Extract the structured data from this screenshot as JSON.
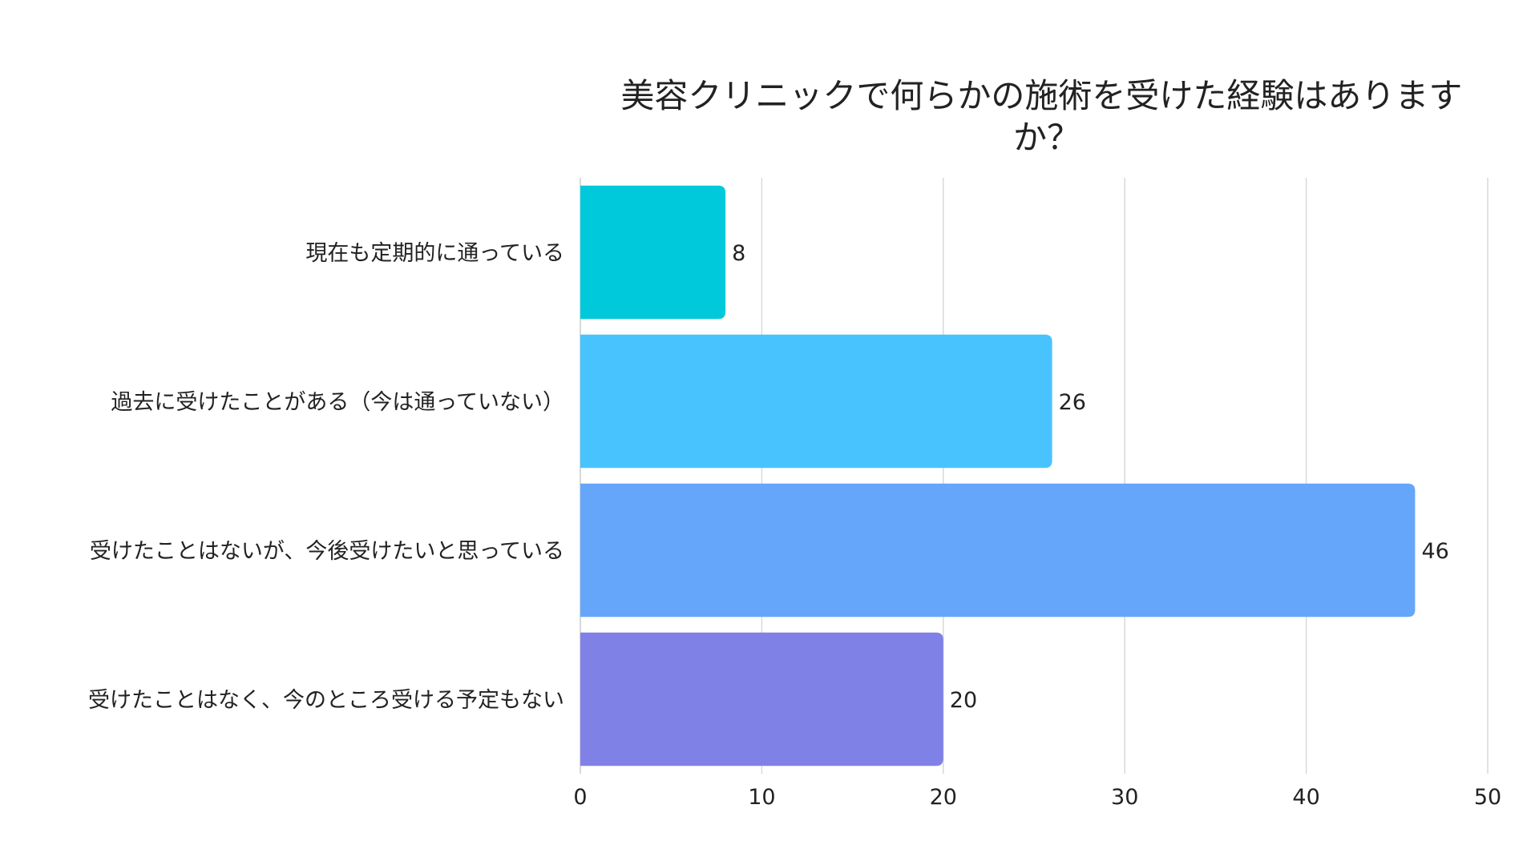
{
  "chart_data": {
    "type": "bar",
    "orientation": "horizontal",
    "title_lines": [
      "美容クリニックで何らかの施術を受けた経験はありますか？"
    ],
    "title": "美容クリニックで何らかの施術を受けた経験はありますか？",
    "categories": [
      "現在も定期的に通っている",
      "過去に受けたことがある（今は通っていない）",
      "受けたことはないが、今後受けたいと思っている",
      "受けたことはなく、今のところ受ける予定もない"
    ],
    "values": [
      8,
      26,
      46,
      20
    ],
    "colors": [
      "#00C9DB",
      "#49C3FD",
      "#66A6FA",
      "#8081E6"
    ],
    "xlim": [
      0,
      50
    ],
    "xticks": [
      0,
      10,
      20,
      30,
      40,
      50
    ],
    "grid": true,
    "xlabel": "",
    "ylabel": ""
  }
}
